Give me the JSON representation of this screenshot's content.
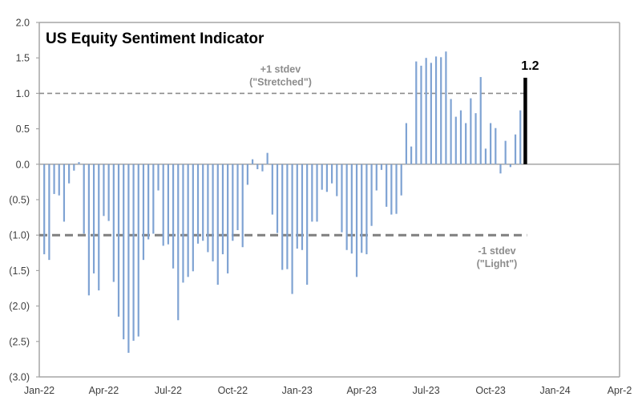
{
  "chart_data": {
    "type": "bar",
    "title": "US Equity Sentiment Indicator",
    "xlabel": "",
    "ylabel": "",
    "ylim": [
      -3.0,
      2.0
    ],
    "yticks": [
      2.0,
      1.5,
      1.0,
      0.5,
      0.0,
      -0.5,
      -1.0,
      -1.5,
      -2.0,
      -2.5,
      -3.0
    ],
    "ytick_labels": [
      "2.0",
      "1.5",
      "1.0",
      "0.5",
      "0.0",
      "(0.5)",
      "(1.0)",
      "(1.5)",
      "(2.0)",
      "(2.5)",
      "(3.0)"
    ],
    "x_domain_weeks": 117,
    "xtick_labels": [
      "Jan-22",
      "Apr-22",
      "Jul-22",
      "Oct-22",
      "Jan-23",
      "Apr-23",
      "Jul-23",
      "Oct-23",
      "Jan-24",
      "Apr-2"
    ],
    "xtick_positions_weeks": [
      0,
      13,
      26,
      39,
      52,
      65,
      78,
      91,
      104,
      117
    ],
    "grid": false,
    "legend": "none",
    "bar_color": "#7fa3d3",
    "highlight_color": "#000000",
    "series": [
      {
        "name": "US Equity Sentiment Indicator (weekly)",
        "start_week": 1,
        "values": [
          -1.27,
          -1.35,
          -0.42,
          -0.44,
          -0.81,
          -0.27,
          -0.09,
          0.03,
          -0.98,
          -1.85,
          -1.54,
          -1.78,
          -0.73,
          -0.8,
          -1.66,
          -2.15,
          -2.47,
          -2.66,
          -2.49,
          -2.43,
          -1.35,
          -1.06,
          -0.98,
          -0.37,
          -1.15,
          -1.13,
          -1.47,
          -2.2,
          -1.67,
          -1.59,
          -1.51,
          -1.12,
          -1.08,
          -1.24,
          -1.37,
          -1.7,
          -1.27,
          -1.54,
          -1.08,
          -0.93,
          -1.17,
          -0.29,
          0.07,
          -0.07,
          -0.1,
          0.16,
          -0.71,
          -0.97,
          -1.49,
          -1.48,
          -1.83,
          -1.19,
          -1.21,
          -1.7,
          -0.81,
          -0.81,
          -0.36,
          -0.39,
          -0.27,
          -0.45,
          -0.96,
          -1.21,
          -1.26,
          -1.59,
          -1.25,
          -1.27,
          -0.87,
          -0.37,
          -0.08,
          -0.6,
          -0.71,
          -0.7,
          -0.44,
          0.58,
          0.25,
          1.45,
          1.39,
          1.5,
          1.43,
          1.52,
          1.51,
          1.59,
          0.92,
          0.67,
          0.76,
          0.58,
          0.93,
          0.72,
          1.23,
          0.22,
          0.58,
          0.51,
          -0.13,
          0.33,
          -0.04,
          0.42,
          0.76,
          1.22
        ]
      }
    ],
    "highlight": {
      "index": 97,
      "value": 1.22,
      "label": "1.2"
    },
    "reference_lines": [
      {
        "name": "plus-one-stdev",
        "y": 1.0,
        "label_line1": "+1 stdev",
        "label_line2": "(\"Stretched\")",
        "color": "#8c8c8c"
      },
      {
        "name": "minus-one-stdev",
        "y": -1.0,
        "label_line1": "-1 stdev",
        "label_line2": "(\"Light\")",
        "color": "#7f7f7f"
      }
    ]
  }
}
